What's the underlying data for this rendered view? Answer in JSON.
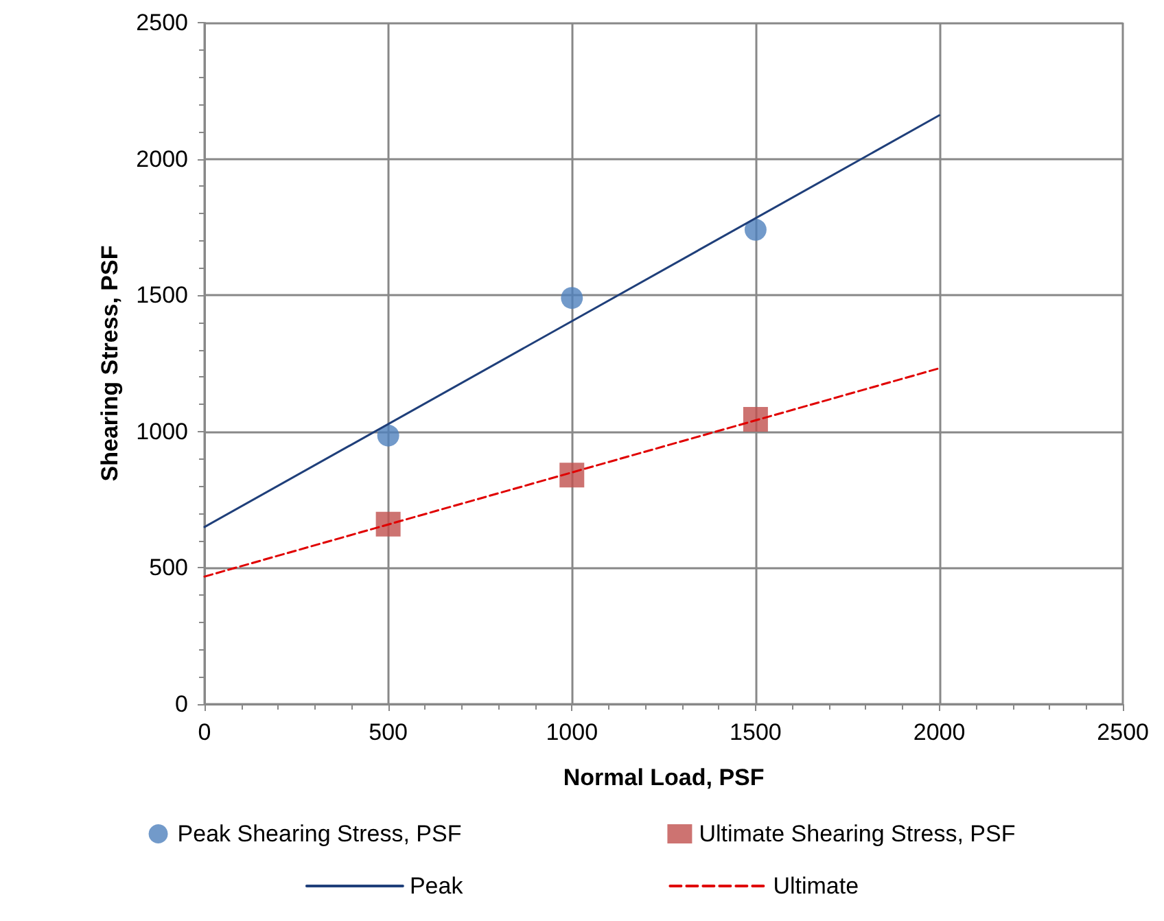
{
  "chart_data": {
    "type": "scatter",
    "xlabel": "Normal Load, PSF",
    "ylabel": "Shearing Stress, PSF",
    "xlim": [
      0,
      2500
    ],
    "xticks": [
      0,
      500,
      1000,
      1500,
      2000,
      2500
    ],
    "ylim": [
      0,
      2500
    ],
    "yticks": [
      0,
      500,
      1000,
      1500,
      2000,
      2500
    ],
    "grid": true,
    "legend": "bottom",
    "series": [
      {
        "name": "Peak Shearing Stress, PSF",
        "marker": "circle",
        "color": "#4f81bd",
        "x": [
          500,
          1000,
          1500
        ],
        "values": [
          985,
          1490,
          1740
        ]
      },
      {
        "name": "Ultimate Shearing Stress, PSF",
        "marker": "square",
        "color": "#c0504d",
        "x": [
          500,
          1000,
          1500
        ],
        "values": [
          660,
          840,
          1045
        ]
      },
      {
        "name": "Peak",
        "type": "line",
        "marker": "none",
        "line_style": "solid",
        "color": "#1f3f7a",
        "x": [
          0,
          2000
        ],
        "values": [
          650,
          2160
        ]
      },
      {
        "name": "Ultimate",
        "type": "line",
        "marker": "none",
        "line_style": "dashed",
        "color": "#e00000",
        "x": [
          0,
          2000
        ],
        "values": [
          468,
          1232
        ]
      }
    ]
  }
}
